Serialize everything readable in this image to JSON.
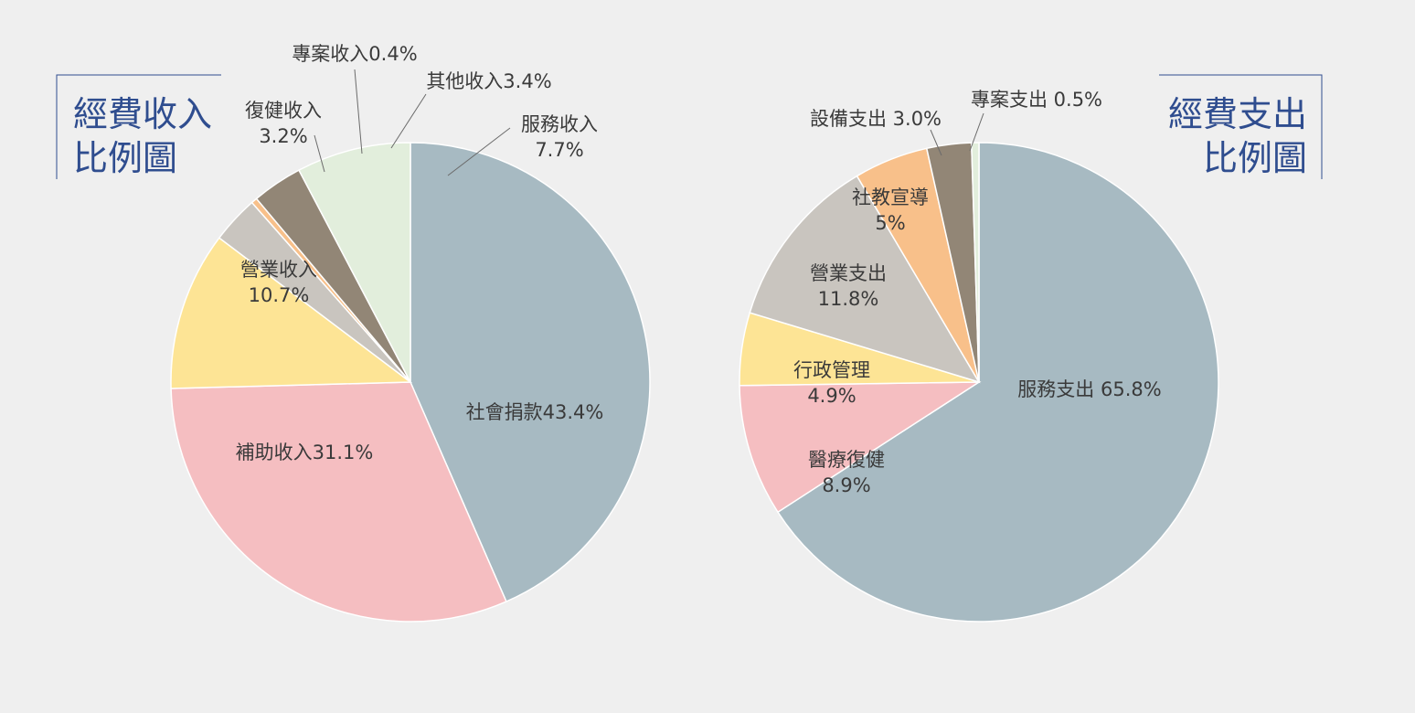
{
  "chart_data": [
    {
      "type": "pie",
      "title_lines": [
        "經費收入",
        "比例圖"
      ],
      "slices": [
        {
          "label": "社會捐款43.4%",
          "label_lines": [
            "社會捐款43.4%"
          ],
          "value": 43.4,
          "color": "#a7bac2"
        },
        {
          "label": "補助收入31.1%",
          "label_lines": [
            "補助收入31.1%"
          ],
          "value": 31.1,
          "color": "#f5bec1"
        },
        {
          "label": "營業收入 10.7%",
          "label_lines": [
            "營業收入",
            "10.7%"
          ],
          "value": 10.7,
          "color": "#fde495"
        },
        {
          "label": "復健收入 3.2%",
          "label_lines": [
            "復健收入",
            "3.2%"
          ],
          "value": 3.2,
          "color": "#c9c5bf"
        },
        {
          "label": "專案收入0.4%",
          "label_lines": [
            "專案收入0.4%"
          ],
          "value": 0.4,
          "color": "#f8c08a"
        },
        {
          "label": "其他收入3.4%",
          "label_lines": [
            "其他收入3.4%"
          ],
          "value": 3.4,
          "color": "#928676"
        },
        {
          "label": "服務收入 7.7%",
          "label_lines": [
            "服務收入",
            "7.7%"
          ],
          "value": 7.7,
          "color": "#e2eedc"
        }
      ]
    },
    {
      "type": "pie",
      "title_lines": [
        "經費支出",
        "比例圖"
      ],
      "slices": [
        {
          "label": "服務支出 65.8%",
          "label_lines": [
            "服務支出 65.8%"
          ],
          "value": 65.8,
          "color": "#a7bac2"
        },
        {
          "label": "醫療復健 8.9%",
          "label_lines": [
            "醫療復健",
            "8.9%"
          ],
          "value": 8.9,
          "color": "#f5bec1"
        },
        {
          "label": "行政管理 4.9%",
          "label_lines": [
            "行政管理",
            "4.9%"
          ],
          "value": 4.9,
          "color": "#fde495"
        },
        {
          "label": "營業支出 11.8%",
          "label_lines": [
            "營業支出",
            "11.8%"
          ],
          "value": 11.8,
          "color": "#c9c5bf"
        },
        {
          "label": "社教宣導 5%",
          "label_lines": [
            "社教宣導",
            "5%"
          ],
          "value": 5,
          "color": "#f8c08a"
        },
        {
          "label": "設備支出 3.0%",
          "label_lines": [
            "設備支出 3.0%"
          ],
          "value": 3.0,
          "color": "#928676"
        },
        {
          "label": "專案支出 0.5%",
          "label_lines": [
            "專案支出 0.5%"
          ],
          "value": 0.5,
          "color": "#e2eedc"
        }
      ]
    }
  ]
}
